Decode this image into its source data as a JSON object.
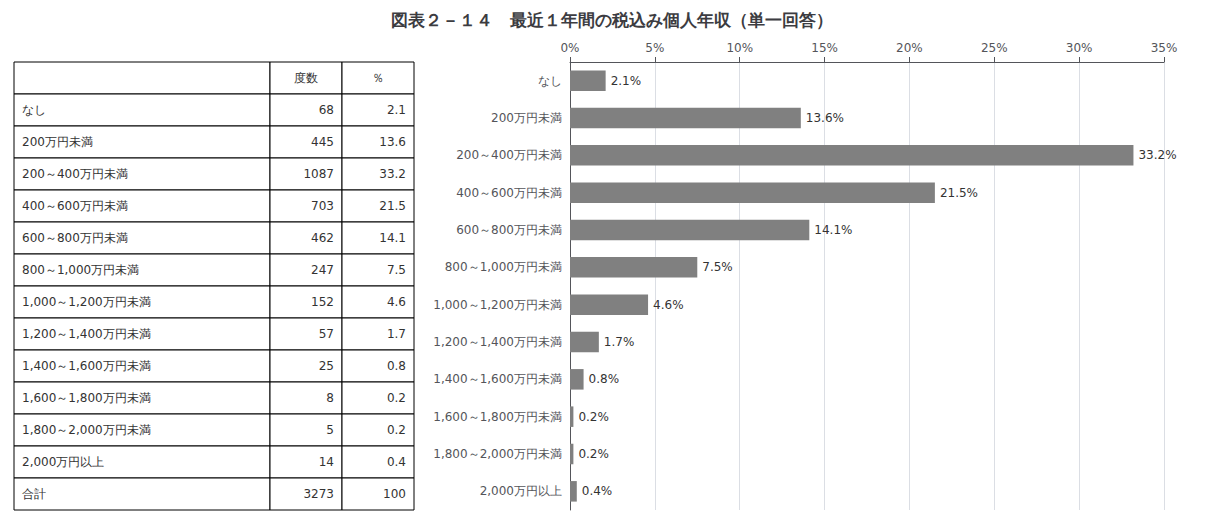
{
  "chart_data": {
    "type": "bar",
    "orientation": "horizontal",
    "title": "図表２－１４　最近１年間の税込み個人年収（単一回答）",
    "categories": [
      "なし",
      "200万円未満",
      "200～400万円未満",
      "400～600万円未満",
      "600～800万円未満",
      "800～1,000万円未満",
      "1,000～1,200万円未満",
      "1,200～1,400万円未満",
      "1,400～1,600万円未満",
      "1,600～1,800万円未満",
      "1,800～2,000万円未満",
      "2,000万円以上"
    ],
    "values": [
      2.1,
      13.6,
      33.2,
      21.5,
      14.1,
      7.5,
      4.6,
      1.7,
      0.8,
      0.2,
      0.2,
      0.4
    ],
    "value_labels": [
      "2.1%",
      "13.6%",
      "33.2%",
      "21.5%",
      "14.1%",
      "7.5%",
      "4.6%",
      "1.7%",
      "0.8%",
      "0.2%",
      "0.2%",
      "0.4%"
    ],
    "data_labels": true,
    "color": "#808080",
    "xlim": [
      0,
      35
    ],
    "xticks": [
      {
        "value": 0,
        "label": "0%"
      },
      {
        "value": 5,
        "label": "5%"
      },
      {
        "value": 10,
        "label": "10%"
      },
      {
        "value": 15,
        "label": "15%"
      },
      {
        "value": 20,
        "label": "20%"
      },
      {
        "value": 25,
        "label": "25%"
      },
      {
        "value": 30,
        "label": "30%"
      },
      {
        "value": 35,
        "label": "35%"
      }
    ],
    "grid": true,
    "table": {
      "headers": [
        "度数",
        "％"
      ],
      "counts": [
        68,
        445,
        1087,
        703,
        462,
        247,
        152,
        57,
        25,
        8,
        5,
        14
      ],
      "total_label": "合計",
      "total_count": 3273,
      "total_pct": 100
    }
  }
}
